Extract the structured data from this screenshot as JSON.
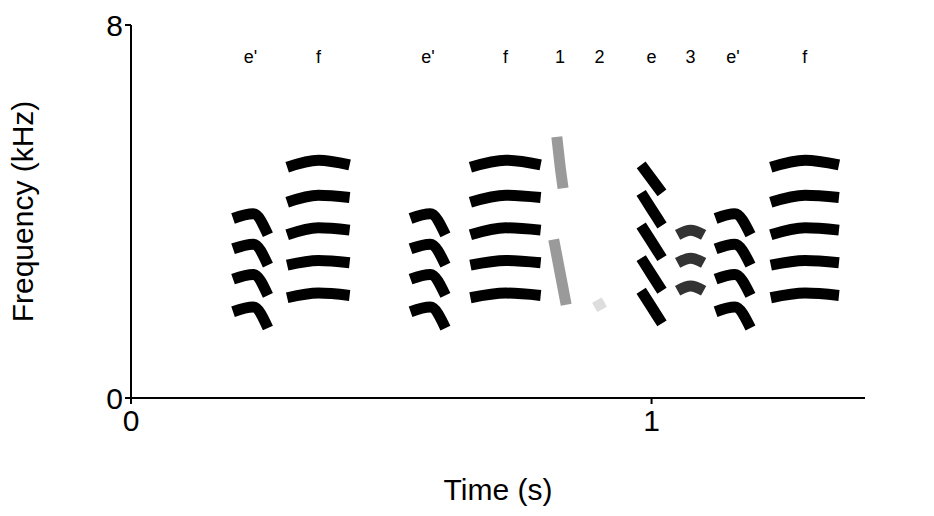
{
  "chart_data": {
    "type": "spectrogram",
    "xlabel": "Time (s)",
    "ylabel": "Frequency (kHz)",
    "xlim": [
      0,
      1.41
    ],
    "ylim": [
      0,
      8
    ],
    "xticks": [
      0,
      1
    ],
    "yticks": [
      0,
      8
    ],
    "syllables": [
      {
        "label": "e'",
        "color": "#000000",
        "harmonics": [
          [
            [
              0.196,
              1.85
            ],
            [
              0.235,
              1.95
            ],
            [
              0.263,
              1.5
            ]
          ],
          [
            [
              0.196,
              2.55
            ],
            [
              0.235,
              2.65
            ],
            [
              0.263,
              2.2
            ]
          ],
          [
            [
              0.196,
              3.2
            ],
            [
              0.235,
              3.3
            ],
            [
              0.263,
              2.85
            ]
          ],
          [
            [
              0.196,
              3.85
            ],
            [
              0.235,
              3.95
            ],
            [
              0.263,
              3.5
            ]
          ]
        ]
      },
      {
        "label": "f",
        "color": "#000000",
        "harmonics": [
          [
            [
              0.3,
              2.15
            ],
            [
              0.36,
              2.25
            ],
            [
              0.42,
              2.2
            ]
          ],
          [
            [
              0.3,
              2.85
            ],
            [
              0.36,
              2.95
            ],
            [
              0.42,
              2.9
            ]
          ],
          [
            [
              0.3,
              3.5
            ],
            [
              0.36,
              3.65
            ],
            [
              0.42,
              3.6
            ]
          ],
          [
            [
              0.3,
              4.2
            ],
            [
              0.36,
              4.35
            ],
            [
              0.42,
              4.3
            ]
          ],
          [
            [
              0.3,
              4.95
            ],
            [
              0.36,
              5.1
            ],
            [
              0.42,
              5.0
            ]
          ]
        ]
      },
      {
        "label": "e'",
        "color": "#000000",
        "harmonics": [
          [
            [
              0.537,
              1.85
            ],
            [
              0.575,
              1.95
            ],
            [
              0.604,
              1.5
            ]
          ],
          [
            [
              0.537,
              2.55
            ],
            [
              0.575,
              2.65
            ],
            [
              0.604,
              2.2
            ]
          ],
          [
            [
              0.537,
              3.2
            ],
            [
              0.575,
              3.3
            ],
            [
              0.604,
              2.85
            ]
          ],
          [
            [
              0.537,
              3.85
            ],
            [
              0.575,
              3.95
            ],
            [
              0.604,
              3.5
            ]
          ]
        ]
      },
      {
        "label": "f",
        "color": "#000000",
        "harmonics": [
          [
            [
              0.652,
              2.15
            ],
            [
              0.72,
              2.25
            ],
            [
              0.787,
              2.2
            ]
          ],
          [
            [
              0.652,
              2.85
            ],
            [
              0.72,
              2.95
            ],
            [
              0.787,
              2.9
            ]
          ],
          [
            [
              0.652,
              3.5
            ],
            [
              0.72,
              3.65
            ],
            [
              0.787,
              3.6
            ]
          ],
          [
            [
              0.652,
              4.2
            ],
            [
              0.72,
              4.35
            ],
            [
              0.787,
              4.3
            ]
          ],
          [
            [
              0.652,
              4.95
            ],
            [
              0.72,
              5.1
            ],
            [
              0.787,
              5.0
            ]
          ]
        ]
      },
      {
        "label": "1",
        "color": "#9a9a9a",
        "harmonics": [
          [
            [
              0.812,
              3.4
            ],
            [
              0.824,
              2.7
            ],
            [
              0.836,
              2.0
            ]
          ],
          [
            [
              0.818,
              5.6
            ],
            [
              0.824,
              5.0
            ],
            [
              0.83,
              4.5
            ]
          ]
        ]
      },
      {
        "label": "2",
        "color": "#dddddd",
        "harmonics": [
          [
            [
              0.895,
              2.1
            ],
            [
              0.9,
              2.0
            ],
            [
              0.905,
              1.9
            ]
          ]
        ]
      },
      {
        "label": "e",
        "color": "#000000",
        "harmonics": [
          [
            [
              0.98,
              2.3
            ],
            [
              1.0,
              1.95
            ],
            [
              1.02,
              1.6
            ]
          ],
          [
            [
              0.98,
              3.0
            ],
            [
              1.0,
              2.65
            ],
            [
              1.02,
              2.3
            ]
          ],
          [
            [
              0.98,
              3.7
            ],
            [
              1.0,
              3.35
            ],
            [
              1.02,
              3.0
            ]
          ],
          [
            [
              0.98,
              4.4
            ],
            [
              1.0,
              4.05
            ],
            [
              1.02,
              3.7
            ]
          ],
          [
            [
              0.98,
              5.0
            ],
            [
              1.0,
              4.7
            ],
            [
              1.02,
              4.4
            ]
          ]
        ]
      },
      {
        "label": "3",
        "color": "#333333",
        "harmonics": [
          [
            [
              1.05,
              2.3
            ],
            [
              1.075,
              2.4
            ],
            [
              1.1,
              2.3
            ]
          ],
          [
            [
              1.05,
              2.9
            ],
            [
              1.075,
              3.0
            ],
            [
              1.1,
              2.9
            ]
          ],
          [
            [
              1.05,
              3.5
            ],
            [
              1.075,
              3.6
            ],
            [
              1.1,
              3.5
            ]
          ]
        ]
      },
      {
        "label": "e'",
        "color": "#000000",
        "harmonics": [
          [
            [
              1.123,
              1.85
            ],
            [
              1.16,
              1.95
            ],
            [
              1.19,
              1.5
            ]
          ],
          [
            [
              1.123,
              2.55
            ],
            [
              1.16,
              2.65
            ],
            [
              1.19,
              2.2
            ]
          ],
          [
            [
              1.123,
              3.2
            ],
            [
              1.16,
              3.3
            ],
            [
              1.19,
              2.85
            ]
          ],
          [
            [
              1.123,
              3.85
            ],
            [
              1.16,
              3.95
            ],
            [
              1.19,
              3.5
            ]
          ]
        ]
      },
      {
        "label": "f",
        "color": "#000000",
        "harmonics": [
          [
            [
              1.229,
              2.15
            ],
            [
              1.295,
              2.25
            ],
            [
              1.36,
              2.2
            ]
          ],
          [
            [
              1.229,
              2.85
            ],
            [
              1.295,
              2.95
            ],
            [
              1.36,
              2.9
            ]
          ],
          [
            [
              1.229,
              3.5
            ],
            [
              1.295,
              3.65
            ],
            [
              1.36,
              3.6
            ]
          ],
          [
            [
              1.229,
              4.2
            ],
            [
              1.295,
              4.35
            ],
            [
              1.36,
              4.3
            ]
          ],
          [
            [
              1.229,
              4.95
            ],
            [
              1.295,
              5.1
            ],
            [
              1.36,
              5.0
            ]
          ]
        ]
      }
    ]
  }
}
